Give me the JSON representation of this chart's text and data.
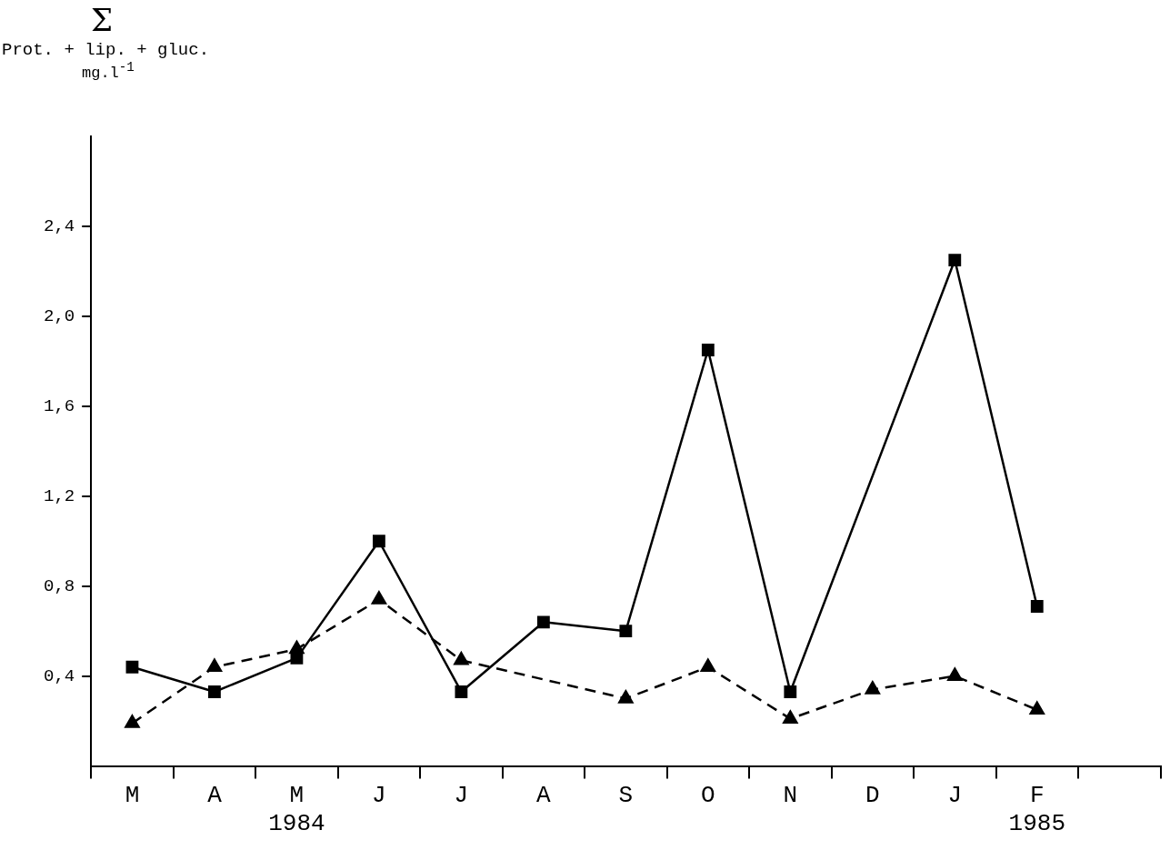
{
  "chart_data": {
    "type": "line",
    "title": "Σ",
    "ylabel": "Prot. + lip. + gluc.",
    "subtitle": "mg.l$^{-1}$",
    "categories": [
      "M",
      "A",
      "M\n1984",
      "J",
      "J",
      "A",
      "S",
      "O",
      "N",
      "D",
      "J",
      "F\n1985",
      null
    ],
    "series": [
      {
        "color": "#000000",
        "marker": "square",
        "line_style": "solid",
        "values": [
          0.44,
          0.33,
          0.48,
          1.0,
          0.33,
          0.64,
          0.6,
          1.85,
          0.33,
          null,
          2.25,
          0.71,
          null
        ]
      },
      {
        "color": "#000000",
        "marker": "triangle",
        "line_style": "dashed",
        "values": [
          0.19,
          0.44,
          0.52,
          0.74,
          0.47,
          null,
          0.3,
          0.44,
          0.21,
          0.34,
          0.4,
          0.25,
          null
        ]
      }
    ],
    "ylim": [
      0,
      2.8
    ],
    "yticks": [
      {
        "value": 0.4,
        "label": "0,4"
      },
      {
        "value": 0.8,
        "label": "0,8"
      },
      {
        "value": 1.2,
        "label": "1,2"
      },
      {
        "value": 1.6,
        "label": "1,6"
      },
      {
        "value": 2.0,
        "label": "2,0"
      },
      {
        "value": 2.4,
        "label": "2,4"
      }
    ],
    "grid": false,
    "legend": false
  }
}
